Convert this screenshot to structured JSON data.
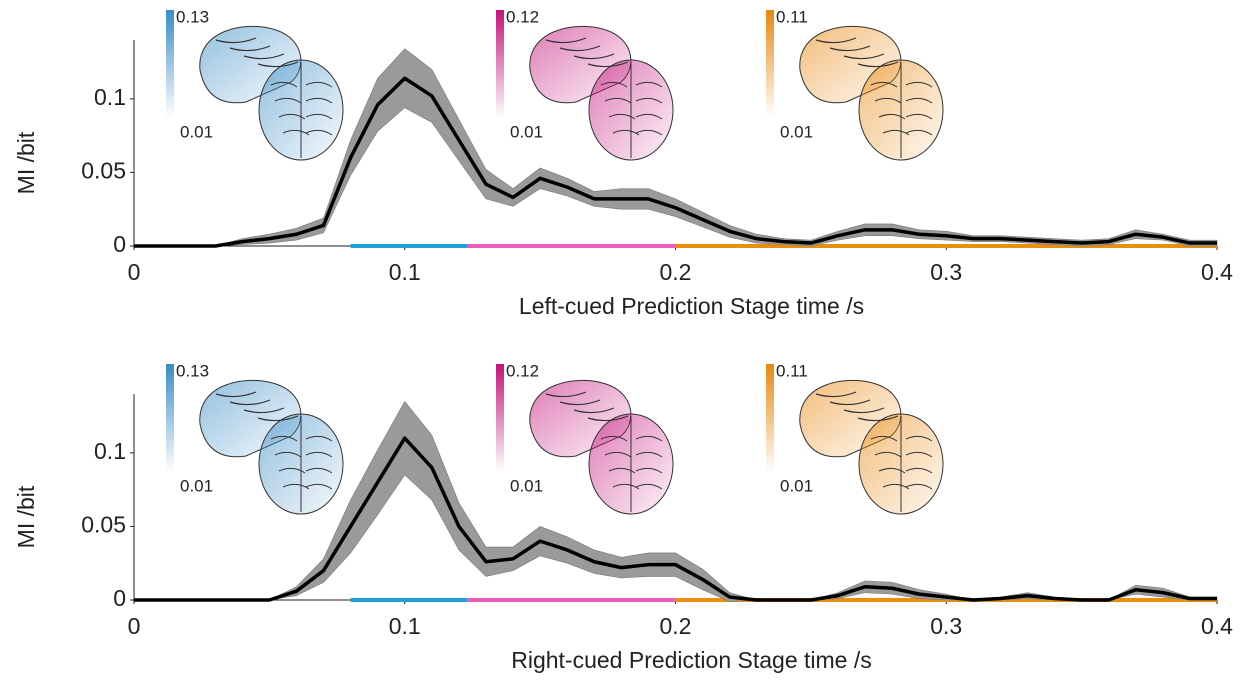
{
  "chart_data": [
    {
      "type": "line",
      "ylabel": "MI /bit",
      "xlabel": "Left-cued Prediction Stage time /s",
      "x": [
        0,
        0.01,
        0.02,
        0.03,
        0.04,
        0.05,
        0.06,
        0.07,
        0.08,
        0.09,
        0.1,
        0.11,
        0.12,
        0.13,
        0.14,
        0.15,
        0.16,
        0.17,
        0.18,
        0.19,
        0.2,
        0.21,
        0.22,
        0.23,
        0.24,
        0.25,
        0.26,
        0.27,
        0.28,
        0.29,
        0.3,
        0.31,
        0.32,
        0.33,
        0.34,
        0.35,
        0.36,
        0.37,
        0.38,
        0.39,
        0.4
      ],
      "series": [
        {
          "color": "#000000",
          "band_color": "#9a9a9a",
          "values": [
            0,
            0,
            0,
            0,
            0.003,
            0.005,
            0.008,
            0.014,
            0.06,
            0.096,
            0.114,
            0.102,
            0.072,
            0.042,
            0.033,
            0.046,
            0.04,
            0.032,
            0.032,
            0.032,
            0.026,
            0.018,
            0.01,
            0.005,
            0.003,
            0.002,
            0.007,
            0.011,
            0.011,
            0.008,
            0.007,
            0.005,
            0.005,
            0.004,
            0.003,
            0.002,
            0.003,
            0.008,
            0.006,
            0.002,
            0.002
          ],
          "errors": [
            0,
            0,
            0,
            0,
            0.002,
            0.003,
            0.004,
            0.005,
            0.012,
            0.018,
            0.02,
            0.018,
            0.014,
            0.01,
            0.006,
            0.007,
            0.006,
            0.005,
            0.007,
            0.007,
            0.006,
            0.005,
            0.004,
            0.003,
            0.002,
            0.002,
            0.003,
            0.004,
            0.004,
            0.003,
            0.003,
            0.002,
            0.002,
            0.002,
            0.002,
            0.002,
            0.002,
            0.003,
            0.002,
            0.002,
            0.002
          ]
        }
      ],
      "xlim": [
        0,
        0.4
      ],
      "ylim": [
        0,
        0.14
      ],
      "xticks": [
        0,
        0.1,
        0.2,
        0.3,
        0.4
      ],
      "yticks": [
        0,
        0.05,
        0.1
      ],
      "windows": [
        {
          "start": 0.08,
          "end": 0.123,
          "color": "#1ea0dc"
        },
        {
          "start": 0.123,
          "end": 0.2,
          "color": "#f25cbf"
        },
        {
          "start": 0.2,
          "end": 0.4,
          "color": "#e8900e"
        }
      ],
      "insets": [
        {
          "max": 0.13,
          "min": 0.01,
          "color": "#3a8cc4"
        },
        {
          "max": 0.12,
          "min": 0.01,
          "color": "#c4127a"
        },
        {
          "max": 0.11,
          "min": 0.01,
          "color": "#e8870e"
        }
      ]
    },
    {
      "type": "line",
      "ylabel": "MI /bit",
      "xlabel": "Right-cued Prediction Stage time /s",
      "x": [
        0,
        0.01,
        0.02,
        0.03,
        0.04,
        0.05,
        0.06,
        0.07,
        0.08,
        0.09,
        0.1,
        0.11,
        0.12,
        0.13,
        0.14,
        0.15,
        0.16,
        0.17,
        0.18,
        0.19,
        0.2,
        0.21,
        0.22,
        0.23,
        0.24,
        0.25,
        0.26,
        0.27,
        0.28,
        0.29,
        0.3,
        0.31,
        0.32,
        0.33,
        0.34,
        0.35,
        0.36,
        0.37,
        0.38,
        0.39,
        0.4
      ],
      "series": [
        {
          "color": "#000000",
          "band_color": "#9a9a9a",
          "values": [
            0,
            0,
            0,
            0,
            0,
            0,
            0.006,
            0.02,
            0.05,
            0.08,
            0.11,
            0.09,
            0.05,
            0.026,
            0.028,
            0.04,
            0.034,
            0.026,
            0.022,
            0.024,
            0.024,
            0.014,
            0.002,
            0,
            0,
            0,
            0.003,
            0.009,
            0.008,
            0.004,
            0.002,
            0,
            0.001,
            0.003,
            0.001,
            0,
            0,
            0.007,
            0.005,
            0.001,
            0.001
          ],
          "errors": [
            0,
            0,
            0,
            0,
            0,
            0,
            0.003,
            0.008,
            0.018,
            0.022,
            0.025,
            0.022,
            0.016,
            0.01,
            0.008,
            0.01,
            0.009,
            0.008,
            0.007,
            0.008,
            0.008,
            0.007,
            0.003,
            0,
            0,
            0,
            0.002,
            0.004,
            0.004,
            0.003,
            0.002,
            0,
            0.001,
            0.002,
            0.001,
            0,
            0,
            0.003,
            0.003,
            0.001,
            0.001
          ]
        }
      ],
      "xlim": [
        0,
        0.4
      ],
      "ylim": [
        0,
        0.14
      ],
      "xticks": [
        0,
        0.1,
        0.2,
        0.3,
        0.4
      ],
      "yticks": [
        0,
        0.05,
        0.1
      ],
      "windows": [
        {
          "start": 0.08,
          "end": 0.123,
          "color": "#1ea0dc"
        },
        {
          "start": 0.123,
          "end": 0.2,
          "color": "#f25cbf"
        },
        {
          "start": 0.2,
          "end": 0.4,
          "color": "#e8900e"
        }
      ],
      "insets": [
        {
          "max": 0.13,
          "min": 0.01,
          "color": "#3a8cc4"
        },
        {
          "max": 0.12,
          "min": 0.01,
          "color": "#c4127a"
        },
        {
          "max": 0.11,
          "min": 0.01,
          "color": "#e8870e"
        }
      ]
    }
  ]
}
